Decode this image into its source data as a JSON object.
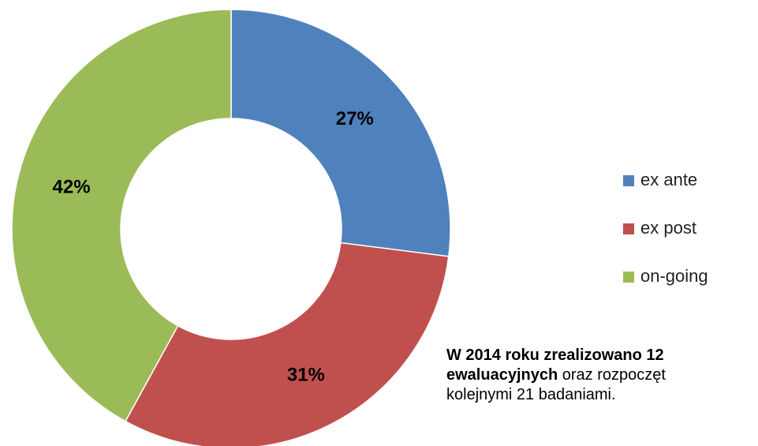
{
  "chart_data": {
    "type": "pie",
    "categories": [
      "ex ante",
      "ex post",
      "on-going"
    ],
    "values": [
      27,
      31,
      42
    ],
    "value_labels": [
      "27%",
      "31%",
      "42%"
    ],
    "colors": [
      "#4f81bd",
      "#c0504d",
      "#9bbb59"
    ],
    "legend": "right"
  },
  "note": {
    "line1": "W 2014 roku zrealizowano 12",
    "line2_bold": "ewaluacyjnych",
    "line2_rest": "oraz rozpoczęt",
    "line3": "kolejnymi 21 badaniami."
  }
}
